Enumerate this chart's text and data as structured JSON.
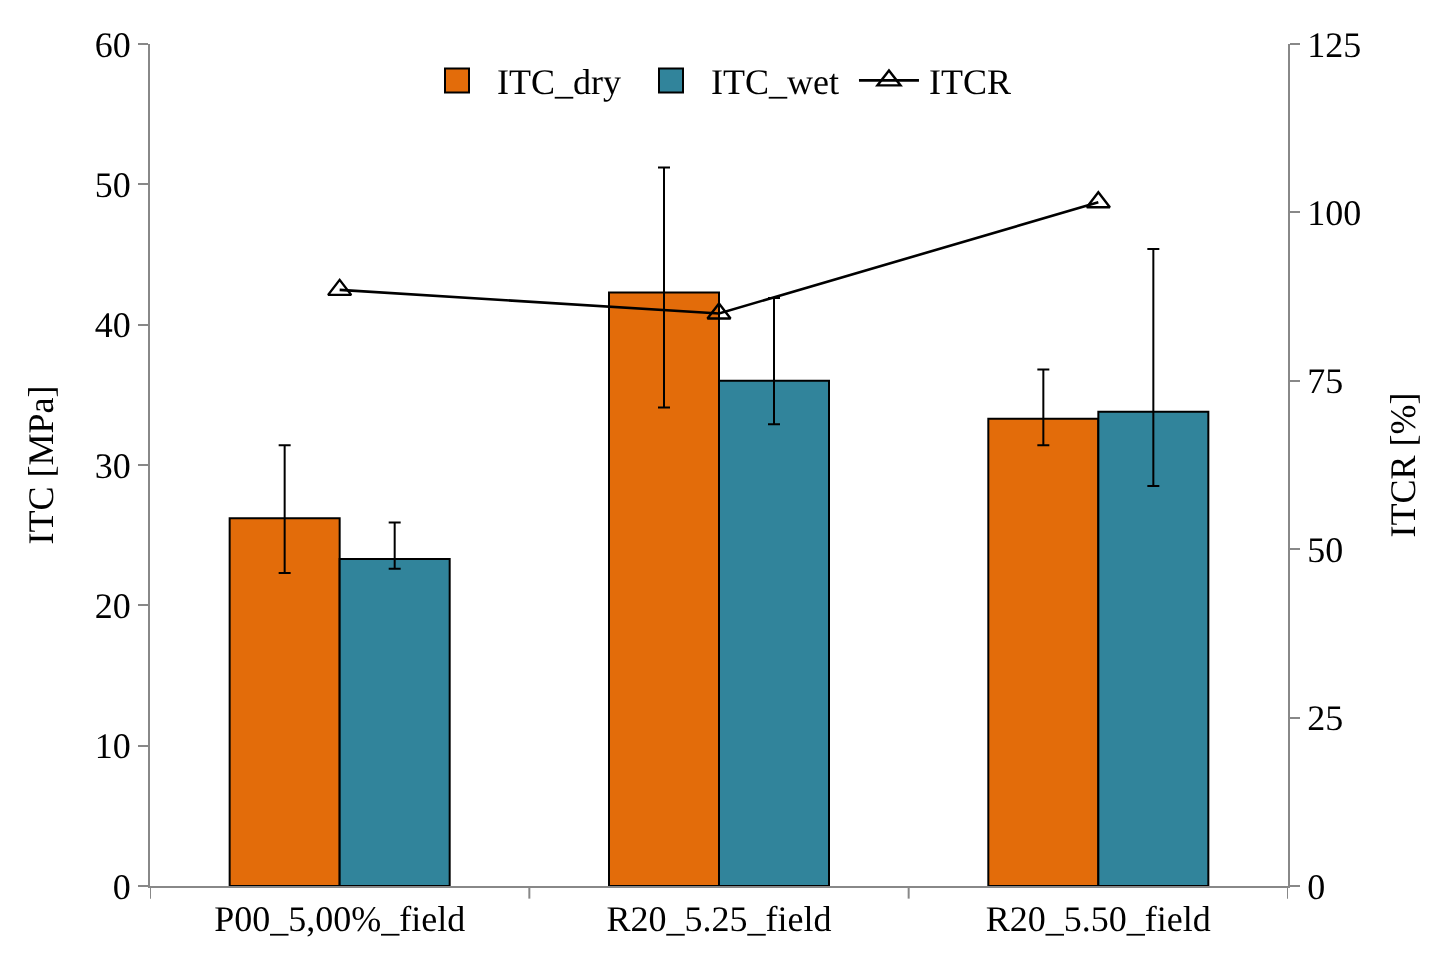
{
  "chart_data": {
    "type": "bar",
    "ylabel": "ITC [MPa]",
    "y2label": "ITCR [%]",
    "categories": [
      "P00_5,00%_field",
      "R20_5.25_field",
      "R20_5.50_field"
    ],
    "series": [
      {
        "name": "ITC_dry",
        "color": "#e36c0a",
        "values": [
          26.2,
          42.3,
          33.3
        ],
        "errors": [
          [
            22.3,
            31.4
          ],
          [
            34.1,
            51.2
          ],
          [
            31.4,
            36.8
          ]
        ]
      },
      {
        "name": "ITC_wet",
        "color": "#31849b",
        "values": [
          23.3,
          36.0,
          33.8
        ],
        "errors": [
          [
            22.6,
            25.9
          ],
          [
            32.9,
            41.9
          ],
          [
            28.5,
            45.4
          ]
        ]
      },
      {
        "name": "ITCR",
        "type": "line",
        "axis": "y2",
        "color": "#000000",
        "marker": "triangle",
        "values": [
          88.5,
          85.0,
          101.5
        ]
      }
    ],
    "ylim": [
      0,
      60
    ],
    "yticks": [
      0,
      10,
      20,
      30,
      40,
      50,
      60
    ],
    "y2lim": [
      0,
      125
    ],
    "y2ticks": [
      0,
      25,
      50,
      75,
      100,
      125
    ],
    "legend": "top"
  }
}
